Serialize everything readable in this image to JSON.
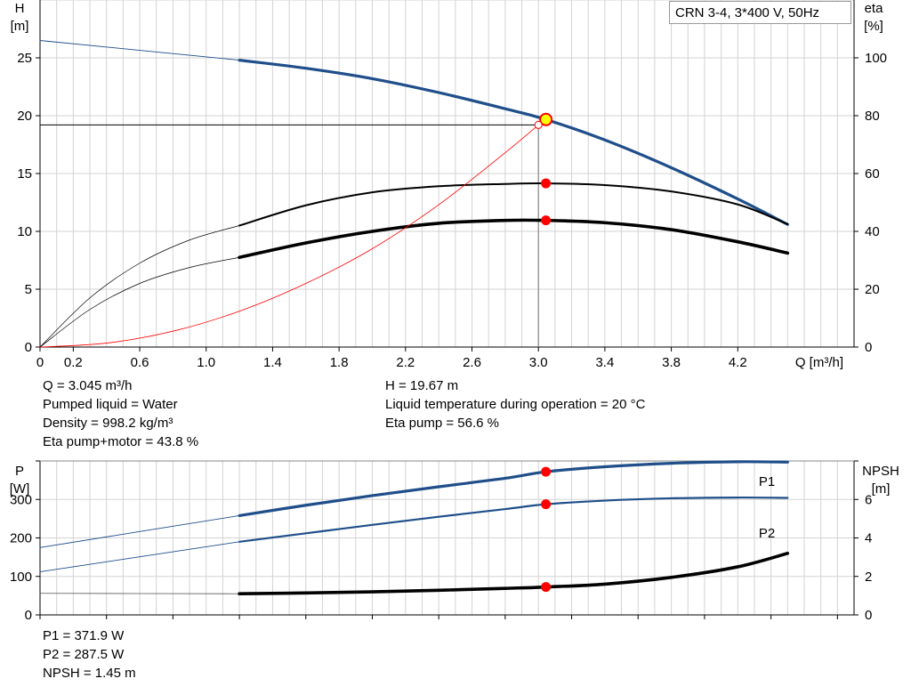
{
  "legend": "CRN 3-4, 3*400 V, 50Hz",
  "colors": {
    "blue": "#1f4e8a",
    "black": "#000000",
    "red": "#ff0000",
    "yellow": "#ffff00",
    "grid": "#d3d3d3"
  },
  "info_top": {
    "q": "Q = 3.045 m³/h",
    "liquid": "Pumped liquid = Water",
    "density": "Density = 998.2 kg/m³",
    "eta_total": "Eta pump+motor = 43.8 %",
    "h": "H = 19.67 m",
    "temp": "Liquid temperature during operation = 20 °C",
    "eta_pump": "Eta pump = 56.6 %"
  },
  "info_bottom": {
    "p1": "P1 = 371.9 W",
    "p2": "P2 = 287.5 W",
    "npsh": "NPSH = 1.45 m"
  },
  "chart_data": [
    {
      "type": "line",
      "x_axis": {
        "label": "Q [m³/h]",
        "lim": [
          0,
          4.9
        ],
        "ticks": [
          "0",
          "0.2",
          "0.6",
          "1.0",
          "1.4",
          "1.8",
          "2.2",
          "2.6",
          "3.0",
          "3.4",
          "3.8",
          "4.2"
        ]
      },
      "y_axis_left": {
        "label_top": "H",
        "label_unit": "[m]",
        "lim": [
          0,
          30
        ],
        "ticks": [
          "0",
          "5",
          "10",
          "15",
          "20",
          "25"
        ]
      },
      "y_axis_right": {
        "label_top": "eta",
        "label_unit": "[%]",
        "lim": [
          0,
          120
        ],
        "ticks": [
          "0",
          "20",
          "40",
          "60",
          "80",
          "100"
        ]
      },
      "grid": true,
      "series": [
        {
          "axis": "left",
          "style": "thin-blue",
          "x": [
            0,
            1.2
          ],
          "y": [
            26.5,
            24.8
          ]
        },
        {
          "axis": "left",
          "style": "thick-blue",
          "x": [
            1.2,
            1.6,
            2.0,
            2.4,
            2.8,
            3.045,
            3.4,
            3.8,
            4.2,
            4.5
          ],
          "y": [
            24.8,
            24.1,
            23.2,
            22.0,
            20.6,
            19.67,
            17.9,
            15.5,
            12.8,
            10.6
          ]
        },
        {
          "axis": "right",
          "style": "thin-black",
          "x": [
            0,
            0.3,
            0.6,
            0.9,
            1.2
          ],
          "y": [
            0,
            17,
            29,
            37,
            42
          ]
        },
        {
          "axis": "right",
          "style": "med-black",
          "x": [
            1.2,
            1.6,
            2.0,
            2.4,
            2.8,
            3.045,
            3.4,
            3.8,
            4.2,
            4.5
          ],
          "y": [
            42,
            49,
            53.5,
            55.6,
            56.4,
            56.6,
            56.0,
            53.8,
            49.3,
            42.5
          ]
        },
        {
          "axis": "right",
          "style": "thin-black",
          "x": [
            0,
            0.3,
            0.6,
            0.9,
            1.2
          ],
          "y": [
            0,
            13,
            22,
            27.5,
            31
          ]
        },
        {
          "axis": "right",
          "style": "thick-black",
          "x": [
            1.2,
            1.6,
            2.0,
            2.4,
            2.8,
            3.045,
            3.4,
            3.8,
            4.2,
            4.5
          ],
          "y": [
            31,
            36,
            40,
            42.8,
            43.8,
            43.8,
            43.0,
            40.6,
            36.4,
            32.5
          ]
        },
        {
          "axis": "left",
          "style": "red",
          "x": [
            0,
            0.4,
            0.8,
            1.2,
            1.6,
            2.0,
            2.4,
            2.8,
            3.0
          ],
          "y": [
            0,
            0.34,
            1.37,
            3.1,
            5.5,
            8.5,
            12.3,
            16.8,
            19.2
          ]
        }
      ],
      "markers": [
        {
          "axis": "left",
          "x": 3.045,
          "y": 19.67,
          "kind": "yellow"
        },
        {
          "axis": "right",
          "x": 3.045,
          "y": 56.6,
          "kind": "red"
        },
        {
          "axis": "right",
          "x": 3.045,
          "y": 43.8,
          "kind": "red"
        },
        {
          "axis": "left",
          "x": 3.0,
          "y": 19.2,
          "kind": "open-red"
        }
      ],
      "crosshair": {
        "x": 3.0,
        "y": 19.2
      }
    },
    {
      "type": "line",
      "x_axis": {
        "lim": [
          0,
          4.9
        ]
      },
      "y_axis_left": {
        "label_top": "P",
        "label_unit": "[W]",
        "lim": [
          0,
          400
        ],
        "ticks": [
          "0",
          "100",
          "200",
          "300"
        ]
      },
      "y_axis_right": {
        "label_top": "NPSH",
        "label_unit": "[m]",
        "lim": [
          0,
          8
        ],
        "ticks": [
          "0",
          "2",
          "4",
          "6"
        ]
      },
      "grid": true,
      "series": [
        {
          "name": "P1",
          "axis": "left",
          "style": "thin-blue",
          "x": [
            0,
            1.2
          ],
          "y": [
            175,
            258
          ]
        },
        {
          "name": "P1",
          "axis": "left",
          "style": "thick-blue",
          "x": [
            1.2,
            1.6,
            2.0,
            2.4,
            2.8,
            3.045,
            3.4,
            3.8,
            4.2,
            4.5
          ],
          "y": [
            258,
            285,
            310,
            333,
            355,
            371.9,
            385,
            394,
            398,
            397
          ]
        },
        {
          "name": "P2",
          "axis": "left",
          "style": "thin-blue",
          "x": [
            0,
            1.2
          ],
          "y": [
            112,
            190
          ]
        },
        {
          "name": "P2",
          "axis": "left",
          "style": "med-blue",
          "x": [
            1.2,
            1.6,
            2.0,
            2.4,
            2.8,
            3.045,
            3.4,
            3.8,
            4.2,
            4.5
          ],
          "y": [
            190,
            212,
            234,
            255,
            275,
            287.5,
            297,
            303,
            305,
            304
          ]
        },
        {
          "axis": "right",
          "style": "thin-gray",
          "x": [
            0,
            1.2
          ],
          "y": [
            1.12,
            1.1
          ]
        },
        {
          "axis": "right",
          "style": "thick-black",
          "x": [
            1.2,
            1.6,
            2.0,
            2.4,
            2.8,
            3.045,
            3.4,
            3.8,
            4.2,
            4.5
          ],
          "y": [
            1.1,
            1.14,
            1.2,
            1.28,
            1.38,
            1.45,
            1.6,
            1.95,
            2.5,
            3.2
          ]
        }
      ],
      "markers": [
        {
          "axis": "left",
          "x": 3.045,
          "y": 371.9,
          "kind": "red"
        },
        {
          "axis": "left",
          "x": 3.045,
          "y": 287.5,
          "kind": "red"
        },
        {
          "axis": "right",
          "x": 3.045,
          "y": 1.45,
          "kind": "red"
        }
      ],
      "series_labels": [
        "P1",
        "P2"
      ]
    }
  ]
}
